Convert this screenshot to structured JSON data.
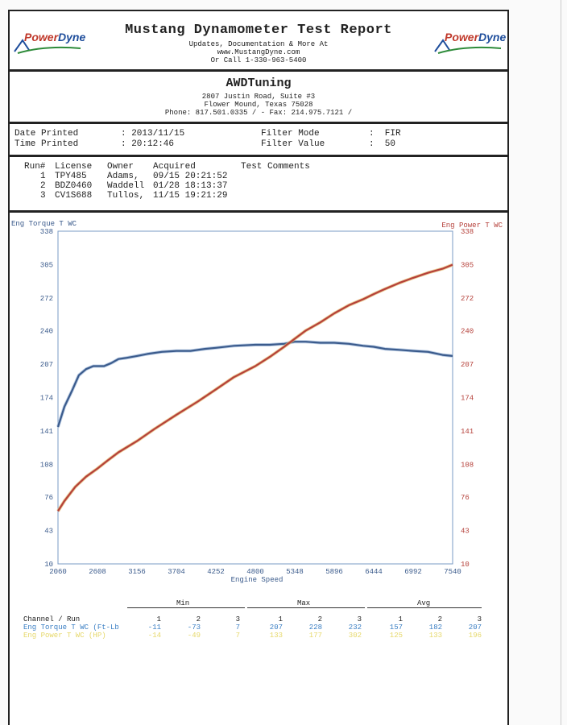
{
  "report": {
    "title": "Mustang Dynamometer Test Report",
    "line1": "Updates, Documentation & More At",
    "line2": "www.MustangDyne.com",
    "line3": "Or Call 1-330-963-5400",
    "logo_left": "PowerDyne",
    "logo_right": "PowerDyne"
  },
  "shop": {
    "name": "AWDTuning",
    "address1": "2807 Justin Road, Suite #3",
    "address2": "Flower Mound, Texas  75028",
    "phone": "Phone: 817.501.0335 /  - Fax: 214.975.7121 /"
  },
  "meta": {
    "date_label": "Date Printed",
    "date_value": ": 2013/11/15",
    "time_label": "Time Printed",
    "time_value": ": 20:12:46",
    "filter_mode_label": "Filter Mode",
    "filter_mode_value": ":  FIR",
    "filter_value_label": "Filter Value",
    "filter_value_value": ":  50"
  },
  "runs": {
    "header": {
      "run": "Run#",
      "license": "License",
      "owner": "Owner",
      "acquired": "Acquired",
      "comments": "Test Comments"
    },
    "rows": [
      {
        "run": "1",
        "license": "TPY485",
        "owner": "Adams,",
        "acquired": "09/15 20:21:52"
      },
      {
        "run": "2",
        "license": "BDZ0460",
        "owner": "Waddell",
        "acquired": "01/28 18:13:37"
      },
      {
        "run": "3",
        "license": "CV1S688",
        "owner": "Tullos,",
        "acquired": "11/15 19:21:29"
      }
    ]
  },
  "chart_data": {
    "type": "line",
    "xlabel": "Engine Speed",
    "ylabel_left": "Eng Torque T WC",
    "ylabel_right": "Eng Power T WC",
    "xlim": [
      2060,
      7540
    ],
    "ylim": [
      10,
      338
    ],
    "x_ticks": [
      "2060",
      "2608",
      "3156",
      "3704",
      "4252",
      "4800",
      "5348",
      "5896",
      "6444",
      "6992",
      "7540"
    ],
    "y_ticks": [
      "338",
      "305",
      "272",
      "240",
      "207",
      "174",
      "141",
      "108",
      "76",
      "43",
      "10"
    ],
    "series": [
      {
        "name": "Eng Torque T WC",
        "axis": "left",
        "color": "#3b5b8c",
        "x": [
          2060,
          2150,
          2250,
          2350,
          2450,
          2550,
          2608,
          2700,
          2800,
          2900,
          3000,
          3156,
          3300,
          3500,
          3704,
          3900,
          4100,
          4252,
          4500,
          4800,
          5000,
          5200,
          5348,
          5500,
          5700,
          5896,
          6100,
          6300,
          6444,
          6600,
          6800,
          6992,
          7200,
          7400,
          7540
        ],
        "y": [
          145,
          165,
          180,
          196,
          202,
          205,
          205,
          205,
          208,
          212,
          213,
          215,
          217,
          219,
          220,
          220,
          222,
          223,
          225,
          226,
          226,
          227,
          229,
          229,
          228,
          228,
          227,
          225,
          224,
          222,
          221,
          220,
          219,
          216,
          215
        ]
      },
      {
        "name": "Eng Power T WC",
        "axis": "right",
        "color": "#b5403a",
        "x": [
          2060,
          2150,
          2300,
          2450,
          2608,
          2750,
          2900,
          3156,
          3400,
          3704,
          4000,
          4252,
          4500,
          4800,
          5000,
          5200,
          5348,
          5500,
          5700,
          5896,
          6100,
          6300,
          6444,
          6600,
          6800,
          6992,
          7200,
          7400,
          7540
        ],
        "y": [
          62,
          72,
          86,
          96,
          104,
          112,
          120,
          131,
          143,
          157,
          170,
          182,
          194,
          205,
          214,
          224,
          232,
          240,
          248,
          257,
          265,
          271,
          276,
          281,
          287,
          292,
          297,
          301,
          305
        ]
      }
    ]
  },
  "summary": {
    "min_label": "Min",
    "max_label": "Max",
    "avg_label": "Avg",
    "channel_label": "Channel / Run",
    "cols": [
      "1",
      "2",
      "3",
      "1",
      "2",
      "3",
      "1",
      "2",
      "3"
    ],
    "row1_label": "Eng Torque T WC (Ft-Lb",
    "row1_values": [
      "-11",
      "-73",
      "7",
      "207",
      "228",
      "232",
      "157",
      "182",
      "207"
    ],
    "row2_label": "Eng Power T WC (HP)",
    "row2_values": [
      "-14",
      "-49",
      "7",
      "133",
      "177",
      "302",
      "125",
      "133",
      "196"
    ]
  }
}
